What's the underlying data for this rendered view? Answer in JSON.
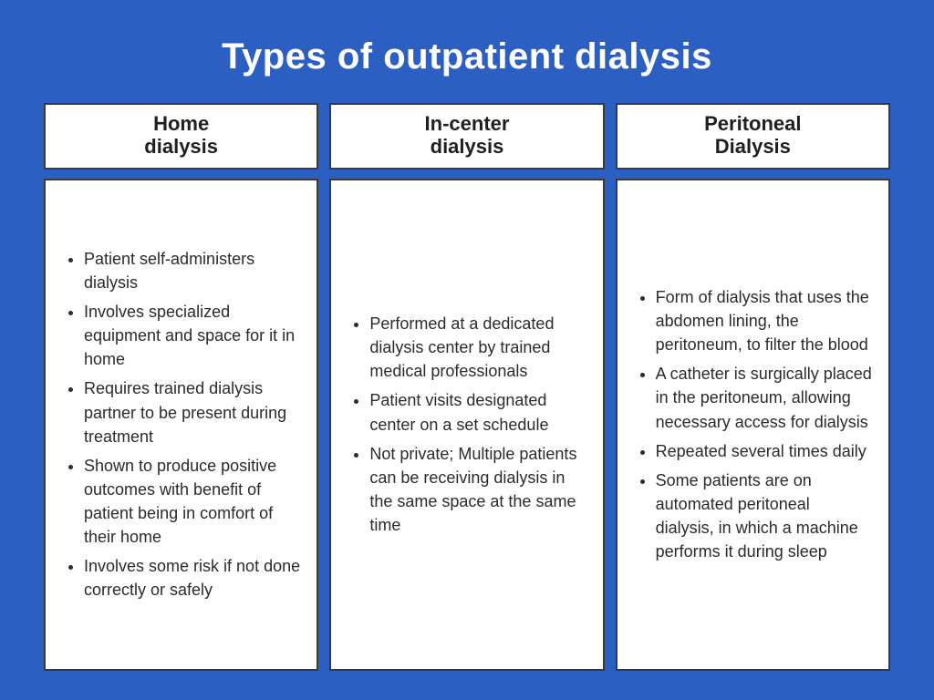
{
  "title": "Types of outpatient dialysis",
  "background_color": "#2b5fc1",
  "card_background": "#ffffff",
  "border_color": "#3a3a3a",
  "text_color": "#2b2b2b",
  "title_color": "#ffffff",
  "title_fontsize_pt": 30,
  "header_fontsize_pt": 17,
  "body_fontsize_pt": 14,
  "columns": [
    {
      "header_line1": "Home",
      "header_line2": "dialysis",
      "bullets": [
        "Patient self-administers dialysis",
        "Involves specialized equipment and space for it in home",
        "Requires trained dialysis partner to be present during treatment",
        "Shown to produce positive outcomes with benefit of patient being in comfort of their home",
        "Involves some risk if not done correctly or safely"
      ]
    },
    {
      "header_line1": "In-center",
      "header_line2": "dialysis",
      "bullets": [
        "Performed at a dedicated dialysis center by trained medical professionals",
        "Patient visits designated center on a set schedule",
        "Not private; Multiple patients can be receiving dialysis in the same space at the same time"
      ]
    },
    {
      "header_line1": "Peritoneal",
      "header_line2": "Dialysis",
      "bullets": [
        "Form of dialysis that uses the abdomen lining, the peritoneum, to filter the blood",
        "A catheter is surgically placed in the peritoneum, allowing necessary access for dialysis",
        "Repeated several times daily",
        "Some patients are on automated peritoneal dialysis, in which a machine performs it during sleep"
      ]
    }
  ]
}
